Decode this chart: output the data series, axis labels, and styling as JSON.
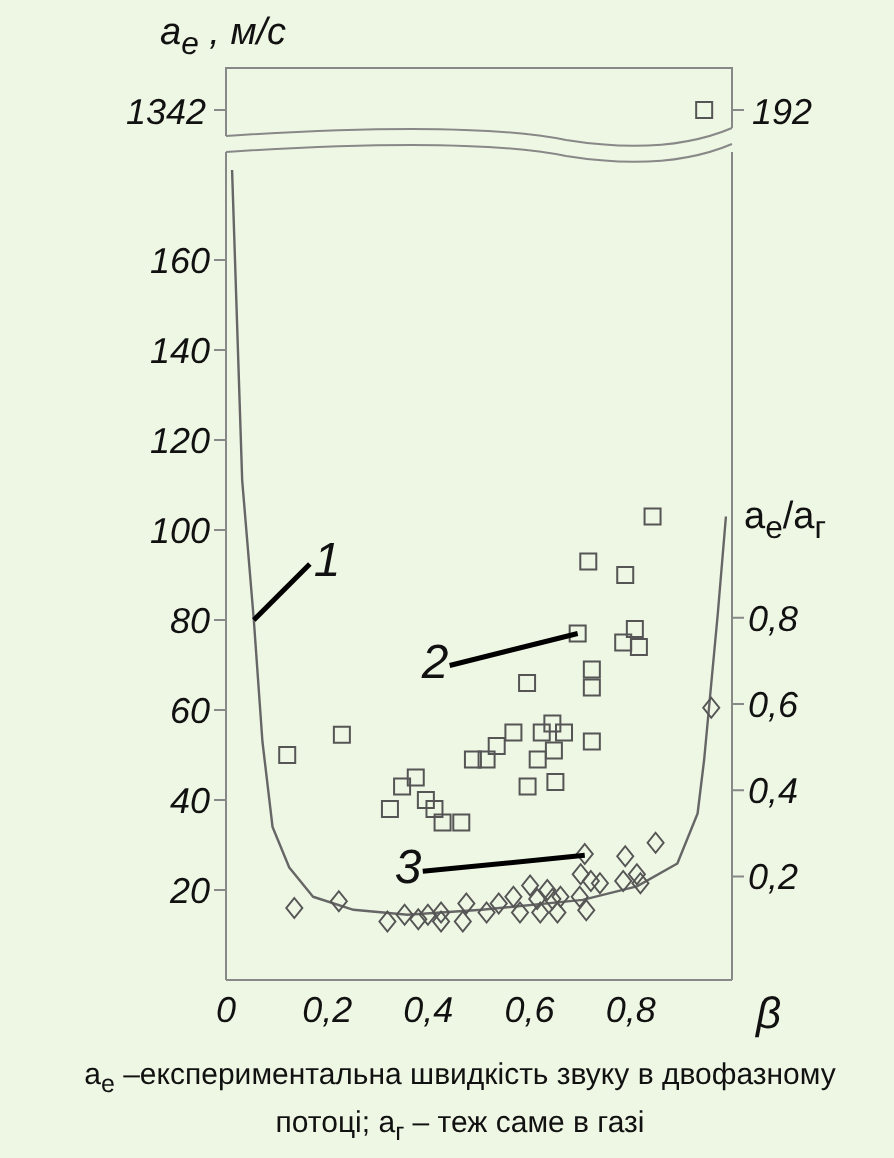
{
  "chart_data": {
    "type": "scatter",
    "xlabel": "β",
    "ylabel": "a$_{e}$ , м/с",
    "y2label": "a$_{e}$/a$_{г}$",
    "xlim": [
      0,
      1
    ],
    "xticks": [
      {
        "value": 0,
        "label": "0"
      },
      {
        "value": 0.2,
        "label": "0,2"
      },
      {
        "value": 0.4,
        "label": "0,4"
      },
      {
        "value": 0.6,
        "label": "0,6"
      },
      {
        "value": 0.8,
        "label": "0,8"
      }
    ],
    "ylim": [
      0,
      184
    ],
    "yticks": [
      20,
      40,
      60,
      80,
      100,
      120,
      140,
      160
    ],
    "y2lim": [
      -0.04,
      1.88
    ],
    "y2ticks": [
      {
        "value": 0.2,
        "label": "0,2"
      },
      {
        "value": 0.4,
        "label": "0,4"
      },
      {
        "value": 0.6,
        "label": "0,6"
      },
      {
        "value": 0.8,
        "label": "0,8"
      }
    ],
    "series": [
      {
        "type": "line",
        "color": "#666666",
        "marker": "none",
        "x": [
          0.012,
          0.032,
          0.055,
          0.072,
          0.092,
          0.125,
          0.172,
          0.252,
          0.359,
          0.505,
          0.705,
          0.812,
          0.892,
          0.932,
          0.945,
          0.972,
          0.988
        ],
        "values": [
          180,
          111,
          80,
          53,
          34,
          25,
          18.5,
          15.6,
          14.5,
          15.6,
          17.8,
          20.8,
          25.9,
          37,
          49,
          81.5,
          103
        ]
      },
      {
        "color": "#555555",
        "marker": "square",
        "x": [
          0.121,
          0.229,
          0.324,
          0.348,
          0.375,
          0.395,
          0.412,
          0.428,
          0.465,
          0.488,
          0.515,
          0.535,
          0.568,
          0.595,
          0.596,
          0.616,
          0.624,
          0.645,
          0.648,
          0.668,
          0.651,
          0.695,
          0.716,
          0.723,
          0.723,
          0.723,
          0.789,
          0.785,
          0.808,
          0.816,
          0.843
        ],
        "values": [
          50,
          54.5,
          38,
          43,
          45,
          40,
          38,
          35,
          35,
          49,
          49,
          52,
          55,
          66,
          43,
          49,
          55,
          57,
          51,
          55,
          44,
          77,
          93,
          69,
          65,
          53,
          90,
          75,
          78,
          74,
          103
        ]
      },
      {
        "color": "#555555",
        "marker": "diamond",
        "x": [
          0.135,
          0.223,
          0.319,
          0.353,
          0.38,
          0.399,
          0.425,
          0.425,
          0.468,
          0.475,
          0.515,
          0.539,
          0.568,
          0.581,
          0.601,
          0.615,
          0.621,
          0.635,
          0.645,
          0.655,
          0.661,
          0.699,
          0.712,
          0.709,
          0.701,
          0.721,
          0.739,
          0.789,
          0.785,
          0.812,
          0.819,
          0.849,
          0.959
        ],
        "values": [
          16,
          17.5,
          13,
          14.5,
          13.5,
          14.5,
          13,
          15,
          13,
          17,
          15,
          17,
          18.5,
          15,
          21,
          18,
          15,
          20,
          18,
          15,
          18.5,
          18.5,
          15.5,
          28,
          23.5,
          22,
          21.5,
          27.5,
          22,
          23.5,
          21.5,
          30.5,
          60.5
        ]
      }
    ],
    "annotations": [
      {
        "text": "1",
        "x": 0.055,
        "y": 80
      },
      {
        "text": "2",
        "x": 0.695,
        "y": 77
      },
      {
        "text": "3",
        "x": 0.709,
        "y": 27.7
      },
      "1342",
      "192",
      "a$_{e}$ –експериментальна  швидкість звуку в двофазному потоці;  a$_{г}$ – теж саме в газі"
    ]
  }
}
